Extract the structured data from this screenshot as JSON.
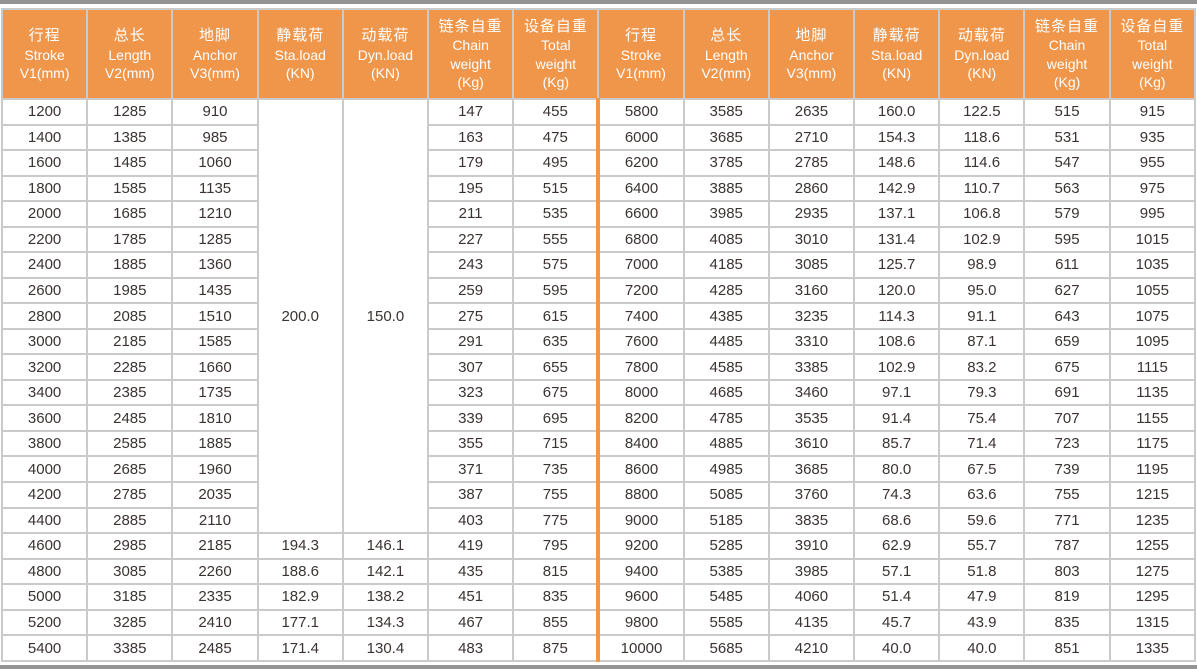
{
  "colors": {
    "header_bg": "#F0964B",
    "divider_orange": "#F0964B",
    "grid_line": "#cacaca",
    "outer_bar": "#939393",
    "header_text": "#ffffff",
    "cell_text": "#3a3331"
  },
  "table": {
    "columns": [
      {
        "zh": "行程",
        "sub": "Stroke\nV1(mm)"
      },
      {
        "zh": "总长",
        "sub": "Length\nV2(mm)"
      },
      {
        "zh": "地脚",
        "sub": "Anchor\nV3(mm)"
      },
      {
        "zh": "静载荷",
        "sub": "Sta.load\n(KN)"
      },
      {
        "zh": "动载荷",
        "sub": "Dyn.load\n(KN)"
      },
      {
        "zh": "链条自重",
        "sub": "Chain\nweight\n(Kg)"
      },
      {
        "zh": "设备自重",
        "sub": "Total\nweight\n(Kg)"
      }
    ],
    "merged": {
      "sta_load": "200.0",
      "dyn_load": "150.0",
      "rowspan": 17
    },
    "left_rows": [
      [
        "1200",
        "1285",
        "910",
        null,
        null,
        "147",
        "455"
      ],
      [
        "1400",
        "1385",
        "985",
        null,
        null,
        "163",
        "475"
      ],
      [
        "1600",
        "1485",
        "1060",
        null,
        null,
        "179",
        "495"
      ],
      [
        "1800",
        "1585",
        "1135",
        null,
        null,
        "195",
        "515"
      ],
      [
        "2000",
        "1685",
        "1210",
        null,
        null,
        "211",
        "535"
      ],
      [
        "2200",
        "1785",
        "1285",
        null,
        null,
        "227",
        "555"
      ],
      [
        "2400",
        "1885",
        "1360",
        null,
        null,
        "243",
        "575"
      ],
      [
        "2600",
        "1985",
        "1435",
        null,
        null,
        "259",
        "595"
      ],
      [
        "2800",
        "2085",
        "1510",
        null,
        null,
        "275",
        "615"
      ],
      [
        "3000",
        "2185",
        "1585",
        null,
        null,
        "291",
        "635"
      ],
      [
        "3200",
        "2285",
        "1660",
        null,
        null,
        "307",
        "655"
      ],
      [
        "3400",
        "2385",
        "1735",
        null,
        null,
        "323",
        "675"
      ],
      [
        "3600",
        "2485",
        "1810",
        null,
        null,
        "339",
        "695"
      ],
      [
        "3800",
        "2585",
        "1885",
        null,
        null,
        "355",
        "715"
      ],
      [
        "4000",
        "2685",
        "1960",
        null,
        null,
        "371",
        "735"
      ],
      [
        "4200",
        "2785",
        "2035",
        null,
        null,
        "387",
        "755"
      ],
      [
        "4400",
        "2885",
        "2110",
        null,
        null,
        "403",
        "775"
      ],
      [
        "4600",
        "2985",
        "2185",
        "194.3",
        "146.1",
        "419",
        "795"
      ],
      [
        "4800",
        "3085",
        "2260",
        "188.6",
        "142.1",
        "435",
        "815"
      ],
      [
        "5000",
        "3185",
        "2335",
        "182.9",
        "138.2",
        "451",
        "835"
      ],
      [
        "5200",
        "3285",
        "2410",
        "177.1",
        "134.3",
        "467",
        "855"
      ],
      [
        "5400",
        "3385",
        "2485",
        "171.4",
        "130.4",
        "483",
        "875"
      ]
    ],
    "right_rows": [
      [
        "5800",
        "3585",
        "2635",
        "160.0",
        "122.5",
        "515",
        "915"
      ],
      [
        "6000",
        "3685",
        "2710",
        "154.3",
        "118.6",
        "531",
        "935"
      ],
      [
        "6200",
        "3785",
        "2785",
        "148.6",
        "114.6",
        "547",
        "955"
      ],
      [
        "6400",
        "3885",
        "2860",
        "142.9",
        "110.7",
        "563",
        "975"
      ],
      [
        "6600",
        "3985",
        "2935",
        "137.1",
        "106.8",
        "579",
        "995"
      ],
      [
        "6800",
        "4085",
        "3010",
        "131.4",
        "102.9",
        "595",
        "1015"
      ],
      [
        "7000",
        "4185",
        "3085",
        "125.7",
        "98.9",
        "611",
        "1035"
      ],
      [
        "7200",
        "4285",
        "3160",
        "120.0",
        "95.0",
        "627",
        "1055"
      ],
      [
        "7400",
        "4385",
        "3235",
        "114.3",
        "91.1",
        "643",
        "1075"
      ],
      [
        "7600",
        "4485",
        "3310",
        "108.6",
        "87.1",
        "659",
        "1095"
      ],
      [
        "7800",
        "4585",
        "3385",
        "102.9",
        "83.2",
        "675",
        "1115"
      ],
      [
        "8000",
        "4685",
        "3460",
        "97.1",
        "79.3",
        "691",
        "1135"
      ],
      [
        "8200",
        "4785",
        "3535",
        "91.4",
        "75.4",
        "707",
        "1155"
      ],
      [
        "8400",
        "4885",
        "3610",
        "85.7",
        "71.4",
        "723",
        "1175"
      ],
      [
        "8600",
        "4985",
        "3685",
        "80.0",
        "67.5",
        "739",
        "1195"
      ],
      [
        "8800",
        "5085",
        "3760",
        "74.3",
        "63.6",
        "755",
        "1215"
      ],
      [
        "9000",
        "5185",
        "3835",
        "68.6",
        "59.6",
        "771",
        "1235"
      ],
      [
        "9200",
        "5285",
        "3910",
        "62.9",
        "55.7",
        "787",
        "1255"
      ],
      [
        "9400",
        "5385",
        "3985",
        "57.1",
        "51.8",
        "803",
        "1275"
      ],
      [
        "9600",
        "5485",
        "4060",
        "51.4",
        "47.9",
        "819",
        "1295"
      ],
      [
        "9800",
        "5585",
        "4135",
        "45.7",
        "43.9",
        "835",
        "1315"
      ],
      [
        "10000",
        "5685",
        "4210",
        "40.0",
        "40.0",
        "851",
        "1335"
      ]
    ]
  }
}
